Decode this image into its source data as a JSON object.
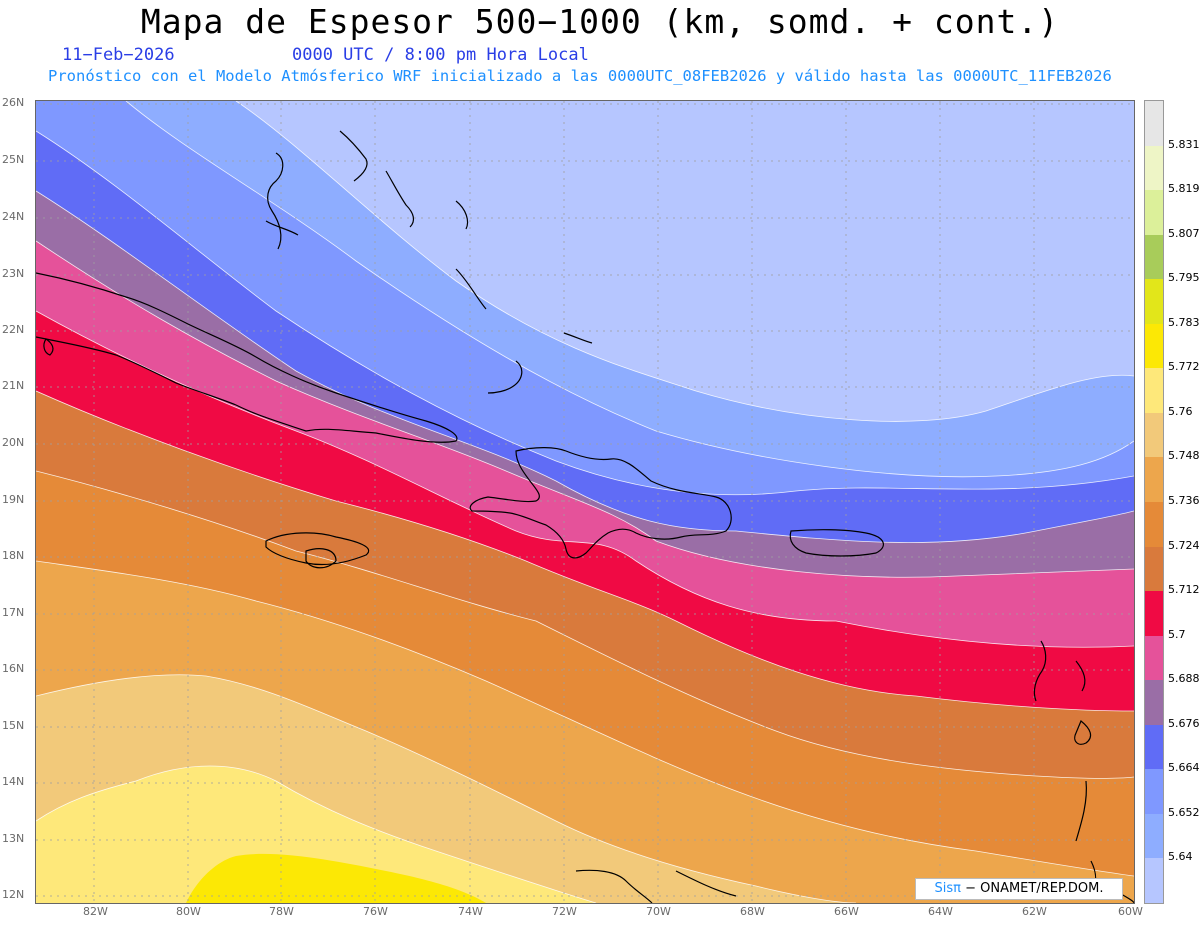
{
  "title": "Mapa de Espesor 500−1000 (km, somd. + cont.)",
  "date": "11−Feb−2026",
  "time": "0000 UTC / 8:00 pm Hora Local",
  "subtitle": "Pronóstico con el Modelo Atmósferico WRF inicializado a las 0000UTC_08FEB2026 y válido hasta las  0000UTC_11FEB2026",
  "credit": {
    "brand": "Sisπ",
    "rest": " − ONAMET/REP.DOM."
  },
  "lat_labels": [
    "26N",
    "25N",
    "24N",
    "23N",
    "22N",
    "21N",
    "20N",
    "19N",
    "18N",
    "17N",
    "16N",
    "15N",
    "14N",
    "13N",
    "12N"
  ],
  "lon_labels": [
    "82W",
    "80W",
    "78W",
    "76W",
    "74W",
    "72W",
    "70W",
    "68W",
    "66W",
    "64W",
    "62W",
    "60W"
  ],
  "colorbar": {
    "levels": [
      "5.831",
      "5.819",
      "5.807",
      "5.795",
      "5.783",
      "5.772",
      "5.76",
      "5.748",
      "5.736",
      "5.724",
      "5.712",
      "5.7",
      "5.688",
      "5.676",
      "5.664",
      "5.652",
      "5.64"
    ],
    "colors": [
      "#e6e6e6",
      "#eef5c6",
      "#dcf09a",
      "#a8cc5a",
      "#e2e61a",
      "#fce805",
      "#fee87a",
      "#f2c97a",
      "#eda64c",
      "#e58a38",
      "#d97a3c",
      "#f00a44",
      "#e5529a",
      "#9a6ea6",
      "#606cf6",
      "#7f98ff",
      "#8eadff",
      "#b6c6ff"
    ]
  },
  "map": {
    "band_colors": [
      "#fce805",
      "#fee87a",
      "#f2c97a",
      "#eda64c",
      "#e58a38",
      "#d97a3c",
      "#f00a44",
      "#e5529a",
      "#9a6ea6",
      "#606cf6",
      "#7f98ff",
      "#8eadff",
      "#b6c6ff"
    ]
  }
}
